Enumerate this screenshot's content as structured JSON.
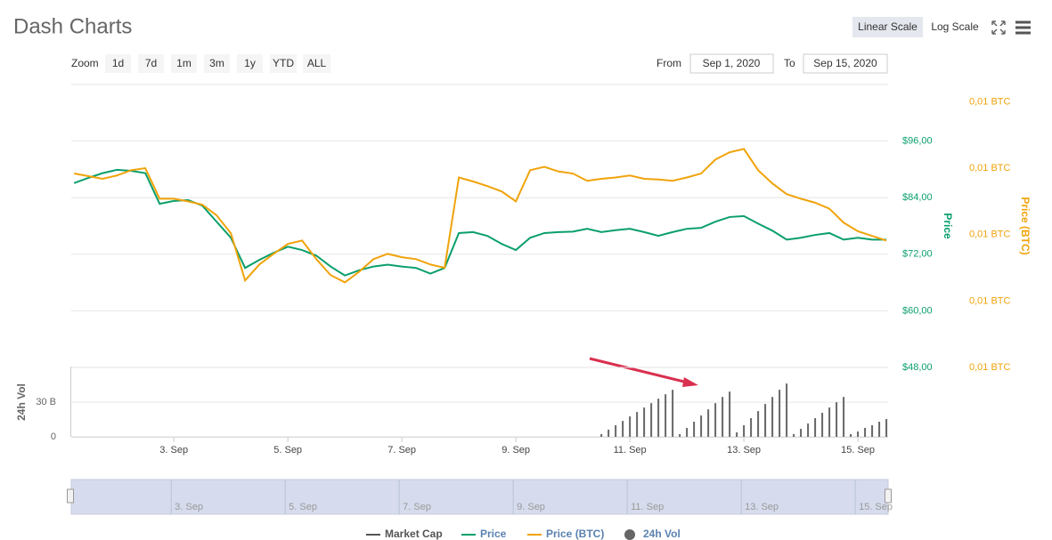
{
  "chart_data": {
    "type": "line",
    "title": "Dash Charts",
    "x": [
      1.25,
      1.5,
      1.75,
      2,
      2.25,
      2.5,
      2.75,
      3,
      3.25,
      3.5,
      3.75,
      4,
      4.25,
      4.5,
      4.75,
      5,
      5.25,
      5.5,
      5.75,
      6,
      6.25,
      6.5,
      6.75,
      7,
      7.25,
      7.5,
      7.75,
      8,
      8.25,
      8.5,
      8.75,
      9,
      9.25,
      9.5,
      9.75,
      10,
      10.25,
      10.5,
      10.75,
      11,
      11.25,
      11.5,
      11.75,
      12,
      12.25,
      12.5,
      12.75,
      13,
      13.25,
      13.5,
      13.75,
      14,
      14.25,
      14.5,
      14.75,
      15,
      15.25,
      15.5
    ],
    "series": [
      {
        "name": "Market Cap",
        "color": "#555555",
        "visible": false
      },
      {
        "name": "Price",
        "color": "#0a9f6b",
        "axis": "y",
        "values": [
          87.1,
          88.2,
          89.2,
          89.9,
          89.7,
          89.2,
          82.7,
          83.3,
          83.5,
          82.3,
          78.9,
          75.5,
          69.1,
          70.8,
          72.3,
          73.6,
          72.9,
          71.7,
          69.4,
          67.5,
          68.6,
          69.4,
          69.8,
          69.4,
          69.1,
          67.9,
          69.1,
          76.5,
          76.7,
          75.9,
          74.2,
          72.9,
          75.5,
          76.5,
          76.7,
          76.8,
          77.4,
          76.7,
          77.1,
          77.4,
          76.7,
          75.9,
          76.7,
          77.4,
          77.6,
          78.9,
          79.9,
          80.1,
          78.5,
          77.0,
          75.1,
          75.5,
          76.1,
          76.5,
          75.1,
          75.5,
          75.1,
          75.1
        ]
      },
      {
        "name": "Price (BTC)",
        "color": "#f0a30a",
        "axis": "y2",
        "values": [
          0.00892,
          0.00888,
          0.00884,
          0.00889,
          0.00897,
          0.009,
          0.00854,
          0.00854,
          0.0085,
          0.00845,
          0.00829,
          0.00802,
          0.00731,
          0.00755,
          0.00771,
          0.00786,
          0.00791,
          0.00763,
          0.00739,
          0.00728,
          0.00744,
          0.00763,
          0.00771,
          0.00766,
          0.00763,
          0.00755,
          0.0075,
          0.00886,
          0.0088,
          0.00873,
          0.00865,
          0.0085,
          0.00897,
          0.00902,
          0.00895,
          0.00892,
          0.00881,
          0.00884,
          0.00886,
          0.00889,
          0.00884,
          0.00883,
          0.00881,
          0.00886,
          0.00892,
          0.00913,
          0.00924,
          0.00929,
          0.00897,
          0.00877,
          0.00861,
          0.00854,
          0.00848,
          0.00839,
          0.00818,
          0.00805,
          0.00798,
          0.00791
        ]
      },
      {
        "name": "24h Vol",
        "color": "#666666",
        "type": "bar",
        "axis": "y3",
        "x": [
          10.5,
          10.625,
          10.75,
          10.875,
          11,
          11.125,
          11.25,
          11.375,
          11.5,
          11.625,
          11.75,
          11.875,
          12,
          12.125,
          12.25,
          12.375,
          12.5,
          12.625,
          12.75,
          12.875,
          13,
          13.125,
          13.25,
          13.375,
          13.5,
          13.625,
          13.75,
          13.875,
          14,
          14.125,
          14.25,
          14.375,
          14.5,
          14.625,
          14.75,
          14.875,
          15,
          15.125,
          15.25,
          15.375,
          15.5
        ],
        "values": [
          2.3,
          6.2,
          10,
          13.8,
          17.7,
          21.5,
          25.4,
          29.2,
          33.1,
          36.9,
          40.8,
          2.3,
          7.7,
          13.1,
          18.5,
          23.8,
          29.2,
          34.6,
          39.2,
          3.8,
          10,
          16.2,
          22.3,
          28.5,
          34.6,
          40.8,
          46.2,
          2.3,
          6.9,
          11.5,
          16.2,
          20.8,
          25.4,
          30,
          34.6,
          2.3,
          4.6,
          7.7,
          10,
          13.1,
          15.4
        ]
      }
    ],
    "xlim": [
      1.2,
      15.53
    ],
    "xticks": [
      {
        "value": 3,
        "label": "3. Sep"
      },
      {
        "value": 5,
        "label": "5. Sep"
      },
      {
        "value": 7,
        "label": "7. Sep"
      },
      {
        "value": 9,
        "label": "9. Sep"
      },
      {
        "value": 11,
        "label": "11. Sep"
      },
      {
        "value": 13,
        "label": "13. Sep"
      },
      {
        "value": 15,
        "label": "15. Sep"
      }
    ],
    "ylim": [
      48,
      108
    ],
    "yticks": [
      {
        "value": 48,
        "label": "$48,00"
      },
      {
        "value": 60,
        "label": "$60,00"
      },
      {
        "value": 72,
        "label": "$72,00"
      },
      {
        "value": 84,
        "label": "$84,00"
      },
      {
        "value": 96,
        "label": "$96,00"
      }
    ],
    "y_label": "Price",
    "y2lim": [
      0.006,
      0.01026
    ],
    "y2ticks": [
      {
        "value": 0.006,
        "label": "0,01 BTC"
      },
      {
        "value": 0.007,
        "label": "0,01 BTC"
      },
      {
        "value": 0.008,
        "label": "0,01 BTC"
      },
      {
        "value": 0.009,
        "label": "0,01 BTC"
      },
      {
        "value": 0.01,
        "label": "0,01 BTC"
      }
    ],
    "y2_label": "Price (BTC)",
    "y3lim": [
      0,
      61
    ],
    "y3ticks": [
      0,
      {
        "value": 30,
        "label": "30 B"
      }
    ],
    "y3_label": "24h Vol",
    "grid": true
  },
  "controls": {
    "scale_buttons": [
      "Linear Scale",
      "Log Scale"
    ],
    "zoom_label": "Zoom",
    "zoom_buttons": [
      "1d",
      "7d",
      "1m",
      "3m",
      "1y",
      "YTD",
      "ALL"
    ],
    "from_label": "From",
    "from_date": "Sep 1, 2020",
    "to_label": "To",
    "to_date": "Sep 15, 2020"
  }
}
